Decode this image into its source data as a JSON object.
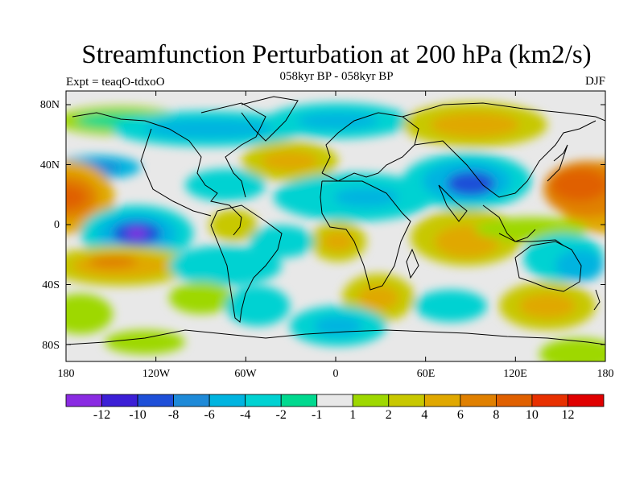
{
  "title": "Streamfunction Perturbation at 200 hPa (km2/s)",
  "subtitle": "058kyr BP - 058kyr BP",
  "experiment": "Expt = teaqO-tdxoO",
  "season": "DJF",
  "latitude_labels": [
    "80N",
    "40N",
    "0",
    "40S",
    "80S"
  ],
  "longitude_labels": [
    "180",
    "120W",
    "60W",
    "0",
    "60E",
    "120E",
    "180"
  ],
  "colorbar": {
    "colors": [
      "#8a2be2",
      "#3c1fd6",
      "#1e4fd8",
      "#1e8ad8",
      "#00b4e0",
      "#00d2d2",
      "#00d98f",
      "#e8e8e8",
      "#9ed800",
      "#c8c800",
      "#e0a800",
      "#e08000",
      "#e06000",
      "#e83000",
      "#e00000"
    ],
    "labels": [
      "-12",
      "-10",
      "-8",
      "-6",
      "-4",
      "-2",
      "-1",
      "1",
      "2",
      "4",
      "6",
      "8",
      "10",
      "12"
    ]
  },
  "map_fill": {
    "ocean_gray": "#e8e8e8",
    "levels": {
      "-12": "#8a2be2",
      "-10": "#3c1fd6",
      "-8": "#1e4fd8",
      "-6": "#1e8ad8",
      "-4": "#00b4e0",
      "-2": "#00d2d2",
      "-1": "#00d98f",
      "2": "#9ed800",
      "4": "#c8c800",
      "6": "#e0a800",
      "8": "#e08000",
      "10": "#e06000",
      "12": "#e83000"
    }
  }
}
